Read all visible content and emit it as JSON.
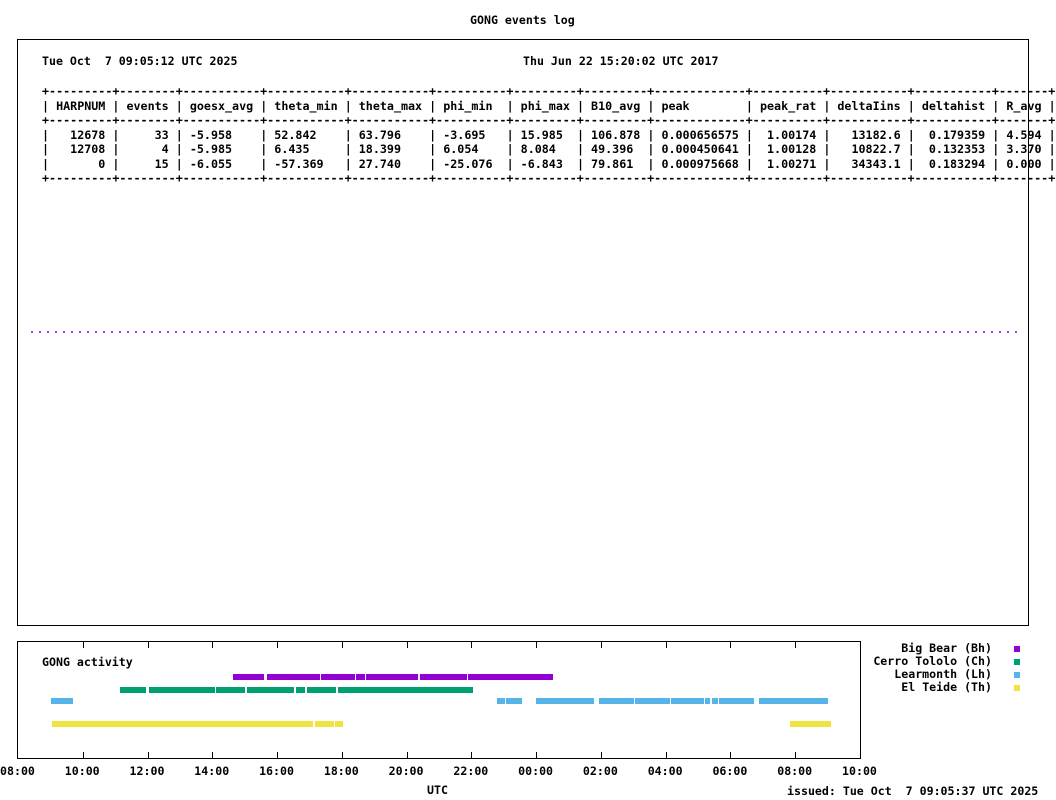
{
  "title": "GONG events log",
  "main": {
    "date_left": "Tue Oct  7 09:05:12 UTC 2025",
    "date_right": "Thu Jun 22 15:20:02 UTC 2017",
    "table": {
      "columns": [
        {
          "label": "HARPNUM",
          "width": 7,
          "align": "right"
        },
        {
          "label": "events",
          "width": 6,
          "align": "right"
        },
        {
          "label": "goesx_avg",
          "width": 9,
          "align": "left"
        },
        {
          "label": "theta_min",
          "width": 9,
          "align": "left"
        },
        {
          "label": "theta_max",
          "width": 9,
          "align": "left"
        },
        {
          "label": "phi_min",
          "width": 8,
          "align": "left"
        },
        {
          "label": "phi_max",
          "width": 7,
          "align": "left"
        },
        {
          "label": "B10_avg",
          "width": 7,
          "align": "left"
        },
        {
          "label": "peak",
          "width": 11,
          "align": "left"
        },
        {
          "label": "peak_rat",
          "width": 8,
          "align": "right"
        },
        {
          "label": "deltaIins",
          "width": 9,
          "align": "right"
        },
        {
          "label": "deltahist",
          "width": 9,
          "align": "right"
        },
        {
          "label": "R_avg",
          "width": 5,
          "align": "left"
        }
      ],
      "rows": [
        [
          "12678",
          "33",
          "-5.958",
          "52.842",
          "63.796",
          "-3.695",
          "15.985",
          "106.878",
          "0.000656575",
          "1.00174",
          "13182.6",
          "0.179359",
          "4.594"
        ],
        [
          "12708",
          "4",
          "-5.985",
          "6.435",
          "18.399",
          "6.054",
          "8.084",
          "49.396",
          "0.000450641",
          "1.00128",
          "10822.7",
          "0.132353",
          "3.370"
        ],
        [
          "0",
          "15",
          "-6.055",
          "-57.369",
          "27.740",
          "-25.076",
          "-6.843",
          "79.861",
          "0.000975668",
          "1.00271",
          "34343.1",
          "0.183294",
          "0.000"
        ]
      ]
    }
  },
  "activity": {
    "title": "GONG activity",
    "x_ticks": [
      "08:00",
      "10:00",
      "12:00",
      "14:00",
      "16:00",
      "18:00",
      "20:00",
      "22:00",
      "00:00",
      "02:00",
      "04:00",
      "06:00",
      "08:00",
      "10:00"
    ],
    "xlabel": "UTC",
    "issued": "issued: Tue Oct  7 09:05:37 UTC 2025",
    "stations": [
      {
        "name": "Big Bear (Bh)",
        "color": "#9400d3",
        "segments_hours": [
          [
            6.64,
            7.59
          ],
          [
            7.69,
            9.33
          ],
          [
            9.37,
            10.41
          ],
          [
            10.45,
            10.72
          ],
          [
            10.76,
            12.36
          ],
          [
            12.4,
            13.87
          ],
          [
            13.91,
            16.51
          ]
        ]
      },
      {
        "name": "Cerro Tololo (Ch)",
        "color": "#009e73",
        "segments_hours": [
          [
            3.15,
            3.95
          ],
          [
            4.04,
            6.07
          ],
          [
            6.11,
            7.02
          ],
          [
            7.06,
            8.52
          ],
          [
            8.58,
            8.87
          ],
          [
            8.91,
            9.83
          ],
          [
            9.87,
            14.04
          ]
        ]
      },
      {
        "name": "Learmonth (Lh)",
        "color": "#56b4e9",
        "segments_hours": [
          [
            1.02,
            1.7
          ],
          [
            14.78,
            15.04
          ],
          [
            15.08,
            15.56
          ],
          [
            15.99,
            17.78
          ],
          [
            17.93,
            19.02
          ],
          [
            19.06,
            20.13
          ],
          [
            20.17,
            21.18
          ],
          [
            21.22,
            21.36
          ],
          [
            21.42,
            21.62
          ],
          [
            21.66,
            22.72
          ],
          [
            22.87,
            25.0
          ]
        ]
      },
      {
        "name": "El Teide (Th)",
        "color": "#f0e442",
        "segments_hours": [
          [
            1.05,
            9.12
          ],
          [
            9.16,
            9.77
          ],
          [
            9.8,
            10.03
          ],
          [
            23.83,
            25.09
          ]
        ]
      }
    ]
  }
}
